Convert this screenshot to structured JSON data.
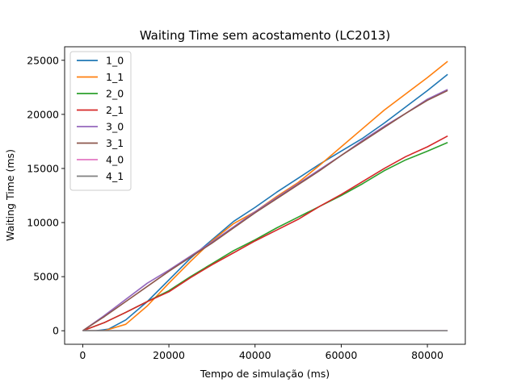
{
  "chart_data": {
    "type": "line",
    "title": "Waiting Time sem acostamento (LC2013)",
    "xlabel": "Tempo de simulação (ms)",
    "ylabel": "Waiting Time (ms)",
    "xlim": [
      -4200,
      88800
    ],
    "ylim": [
      -1250,
      26250
    ],
    "xticks": [
      0,
      20000,
      40000,
      60000,
      80000
    ],
    "xtick_labels": [
      "0",
      "20000",
      "40000",
      "60000",
      "80000"
    ],
    "yticks": [
      0,
      5000,
      10000,
      15000,
      20000,
      25000
    ],
    "ytick_labels": [
      "0",
      "5000",
      "10000",
      "15000",
      "20000",
      "25000"
    ],
    "grid": false,
    "legend_position": "top-left",
    "series": [
      {
        "name": "1_0",
        "color": "#1f77b4",
        "x": [
          0,
          3000,
          6000,
          10000,
          15000,
          20000,
          25000,
          30000,
          35000,
          40000,
          45000,
          50000,
          55000,
          60000,
          65000,
          70000,
          75000,
          80000,
          84700
        ],
        "y": [
          0,
          0,
          150,
          1000,
          2700,
          4700,
          6700,
          8400,
          10100,
          11400,
          12800,
          14100,
          15400,
          16600,
          17800,
          19200,
          20700,
          22200,
          23700
        ]
      },
      {
        "name": "1_1",
        "color": "#ff7f0e",
        "x": [
          0,
          2500,
          5000,
          10000,
          15000,
          20000,
          25000,
          30000,
          35000,
          40000,
          45000,
          50000,
          55000,
          60000,
          65000,
          70000,
          75000,
          80000,
          84700
        ],
        "y": [
          0,
          0,
          0,
          600,
          2300,
          4400,
          6400,
          8300,
          9900,
          11000,
          12400,
          13700,
          15300,
          17000,
          18700,
          20400,
          21900,
          23400,
          24900
        ]
      },
      {
        "name": "2_0",
        "color": "#2ca02c",
        "x": [
          0,
          5000,
          10000,
          15000,
          20000,
          25000,
          30000,
          35000,
          40000,
          45000,
          50000,
          55000,
          60000,
          65000,
          70000,
          75000,
          80000,
          84700
        ],
        "y": [
          0,
          750,
          1700,
          2700,
          3700,
          5000,
          6200,
          7400,
          8400,
          9500,
          10500,
          11500,
          12500,
          13600,
          14800,
          15800,
          16600,
          17400
        ]
      },
      {
        "name": "2_1",
        "color": "#d62728",
        "x": [
          0,
          5000,
          10000,
          15000,
          20000,
          25000,
          30000,
          35000,
          40000,
          45000,
          50000,
          55000,
          60000,
          65000,
          70000,
          75000,
          80000,
          84700
        ],
        "y": [
          0,
          750,
          1700,
          2700,
          3600,
          4900,
          6100,
          7200,
          8300,
          9300,
          10300,
          11500,
          12600,
          13800,
          15000,
          16100,
          17000,
          18000
        ]
      },
      {
        "name": "3_0",
        "color": "#9467bd",
        "x": [
          0,
          5000,
          10000,
          15000,
          20000,
          25000,
          30000,
          35000,
          40000,
          45000,
          50000,
          55000,
          60000,
          65000,
          70000,
          75000,
          80000,
          84700
        ],
        "y": [
          0,
          1400,
          2900,
          4400,
          5600,
          6900,
          8200,
          9600,
          11000,
          12300,
          13600,
          14900,
          16200,
          17600,
          18900,
          20100,
          21400,
          22300
        ]
      },
      {
        "name": "3_1",
        "color": "#8c564b",
        "x": [
          0,
          5000,
          10000,
          15000,
          20000,
          25000,
          30000,
          35000,
          40000,
          45000,
          50000,
          55000,
          60000,
          65000,
          70000,
          75000,
          80000,
          84700
        ],
        "y": [
          0,
          1300,
          2700,
          4100,
          5500,
          6800,
          8100,
          9500,
          10900,
          12200,
          13500,
          14800,
          16200,
          17500,
          18800,
          20100,
          21300,
          22200
        ]
      },
      {
        "name": "4_0",
        "color": "#e377c2",
        "x": [
          0,
          84700
        ],
        "y": [
          0,
          0
        ]
      },
      {
        "name": "4_1",
        "color": "#7f7f7f",
        "x": [
          0,
          84700
        ],
        "y": [
          0,
          0
        ]
      }
    ]
  }
}
